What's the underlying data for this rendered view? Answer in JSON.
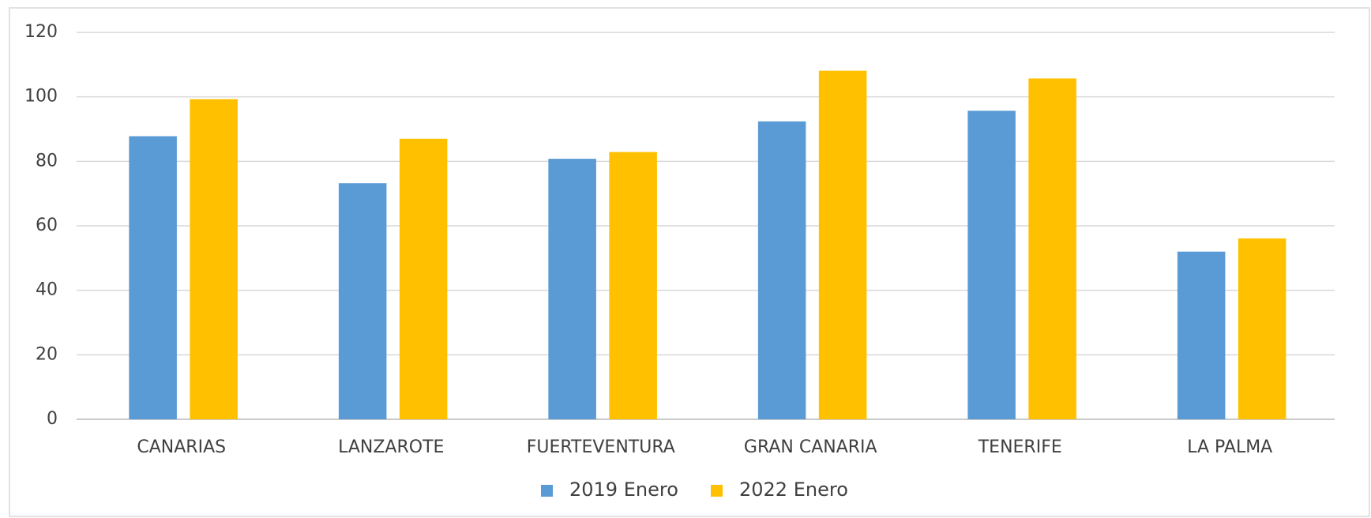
{
  "chart_data": {
    "type": "bar",
    "categories": [
      "CANARIAS",
      "LANZAROTE",
      "FUERTEVENTURA",
      "GRAN CANARIA",
      "TENERIFE",
      "LA PALMA"
    ],
    "series": [
      {
        "name": "2019 Enero",
        "color": "#5b9bd5",
        "values": [
          87.8,
          73.2,
          80.8,
          92.4,
          95.7,
          52.0
        ]
      },
      {
        "name": "2022 Enero",
        "color": "#ffc000",
        "values": [
          99.3,
          87.0,
          82.9,
          108.1,
          105.7,
          56.1
        ]
      }
    ],
    "ylim": [
      0,
      120
    ],
    "yticks": [
      0,
      20,
      40,
      60,
      80,
      100,
      120
    ],
    "grid": true,
    "legend": "bottom"
  }
}
